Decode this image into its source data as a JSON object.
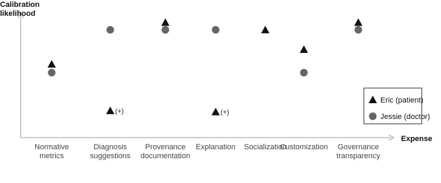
{
  "chart_data": {
    "type": "scatter",
    "y_label": "Calibration\nlikelihood",
    "x_label": "Expense",
    "categories": [
      "Normative\nmetrics",
      "Diagnosis\nsuggestions",
      "Provenance\ndocumentation",
      "Explanation",
      "Socialization",
      "Customization",
      "Governance\ntransparency"
    ],
    "ylim": [
      0,
      1
    ],
    "series": [
      {
        "name": "Eric (patient)",
        "color": "#111111",
        "marker": "triangle",
        "values": [
          0.6,
          0.22,
          0.94,
          0.21,
          0.88,
          0.72,
          0.94
        ]
      },
      {
        "name": "Jessie (doctor)",
        "color": "#666666",
        "marker": "circle",
        "values": [
          0.53,
          0.88,
          0.88,
          0.88,
          null,
          0.53,
          0.88
        ]
      }
    ],
    "annotations": [
      {
        "text": "(+)",
        "category": "Diagnosis\nsuggestions",
        "series": "Eric (patient)"
      },
      {
        "text": "(+)",
        "category": "Explanation",
        "series": "Eric (patient)"
      }
    ],
    "legend": "right"
  }
}
